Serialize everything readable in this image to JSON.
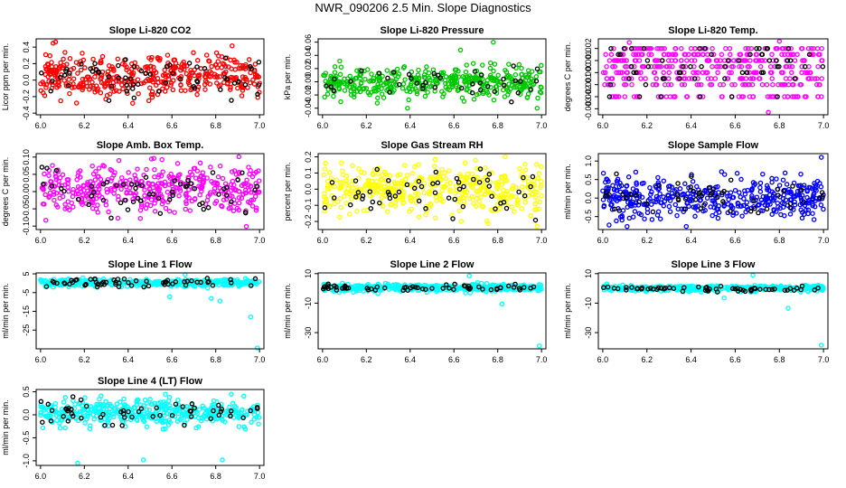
{
  "figure": {
    "title": "NWR_090206  2.5 Min. Slope Diagnostics"
  },
  "chart_data": [
    {
      "type": "scatter",
      "title": "Slope Li-820 CO2",
      "ylabel": "Licor ppm per min.",
      "xlim": [
        5.98,
        7.02
      ],
      "xticks": [
        6.0,
        6.2,
        6.4,
        6.6,
        6.8,
        7.0
      ],
      "x_tick_labels": [
        "6.0",
        "6.2",
        "6.4",
        "6.6",
        "6.8",
        "7.0"
      ],
      "ylim": [
        -0.42,
        0.5
      ],
      "yticks": [
        -0.4,
        -0.2,
        0.0,
        0.2,
        0.4
      ],
      "y_tick_labels": [
        "-0.4",
        "-0.2",
        "0.0",
        "0.2",
        "0.4"
      ],
      "primary_color": "#ff0000",
      "highlight_color": "#000000",
      "center": 0.05,
      "spread": 0.13,
      "discrete_levels": null,
      "n_points": 420,
      "n_highlight": 60,
      "outliers": [],
      "seed": 11
    },
    {
      "type": "scatter",
      "title": "Slope Li-820 Pressure",
      "ylabel": "kPa per min.",
      "xlim": [
        5.98,
        7.02
      ],
      "xticks": [
        6.0,
        6.2,
        6.4,
        6.6,
        6.8,
        7.0
      ],
      "x_tick_labels": [
        "6.0",
        "6.2",
        "6.4",
        "6.6",
        "6.8",
        "7.0"
      ],
      "ylim": [
        -0.05,
        0.065
      ],
      "yticks": [
        -0.04,
        -0.02,
        0.0,
        0.02,
        0.04,
        0.06
      ],
      "y_tick_labels": [
        "-0.04",
        "-0.02",
        "0.00",
        "0.02",
        "0.04",
        "0.06"
      ],
      "primary_color": "#00c800",
      "highlight_color": "#000000",
      "center": 0.0,
      "spread": 0.011,
      "discrete_levels": null,
      "n_points": 420,
      "n_highlight": 40,
      "outliers": [
        [
          6.63,
          0.048
        ],
        [
          6.78,
          0.06
        ],
        [
          6.98,
          -0.04
        ]
      ],
      "seed": 23
    },
    {
      "type": "scatter",
      "title": "Slope Li-820 Temp.",
      "ylabel": "degrees C per min.",
      "xlim": [
        5.98,
        7.02
      ],
      "xticks": [
        6.0,
        6.2,
        6.4,
        6.6,
        6.8,
        7.0
      ],
      "x_tick_labels": [
        "6.0",
        "6.2",
        "6.4",
        "6.6",
        "6.8",
        "7.0"
      ],
      "ylim": [
        -0.0035,
        0.0028
      ],
      "yticks": [
        -0.003,
        -0.002,
        -0.001,
        0.0,
        0.001,
        0.002
      ],
      "y_tick_labels": [
        "-0.003",
        "-0.002",
        "-0.001",
        "0.000",
        "0.001",
        "0.002"
      ],
      "primary_color": "#ff00ff",
      "highlight_color": "#000000",
      "center": 0.0,
      "spread": 0.0008,
      "discrete_levels": [
        -0.002,
        -0.001,
        -0.0005,
        0.0,
        0.0005,
        0.001,
        0.0015,
        0.002
      ],
      "n_points": 420,
      "n_highlight": 60,
      "outliers": [
        [
          6.12,
          0.0025
        ],
        [
          6.75,
          -0.0033
        ],
        [
          6.8,
          0.0026
        ]
      ],
      "seed": 37
    },
    {
      "type": "scatter",
      "title": "Slope Amb. Box Temp.",
      "ylabel": "degrees C per min.",
      "xlim": [
        5.98,
        7.02
      ],
      "xticks": [
        6.0,
        6.2,
        6.4,
        6.6,
        6.8,
        7.0
      ],
      "x_tick_labels": [
        "6.0",
        "6.2",
        "6.4",
        "6.6",
        "6.8",
        "7.0"
      ],
      "ylim": [
        -0.11,
        0.11
      ],
      "yticks": [
        -0.1,
        -0.05,
        0.0,
        0.05,
        0.1
      ],
      "y_tick_labels": [
        "-0.10",
        "-0.05",
        "0.00",
        "0.05",
        "0.10"
      ],
      "primary_color": "#ff00ff",
      "highlight_color": "#000000",
      "center": 0.005,
      "spread": 0.035,
      "discrete_levels": null,
      "n_points": 420,
      "n_highlight": 60,
      "outliers": [],
      "seed": 41
    },
    {
      "type": "scatter",
      "title": "Slope Gas Stream RH",
      "ylabel": "percent per min.",
      "xlim": [
        5.98,
        7.02
      ],
      "xticks": [
        6.0,
        6.2,
        6.4,
        6.6,
        6.8,
        7.0
      ],
      "x_tick_labels": [
        "6.0",
        "6.2",
        "6.4",
        "6.6",
        "6.8",
        "7.0"
      ],
      "ylim": [
        -0.25,
        0.22
      ],
      "yticks": [
        -0.2,
        -0.1,
        0.0,
        0.1,
        0.2
      ],
      "y_tick_labels": [
        "-0.2",
        "-0.1",
        "0.0",
        "0.1",
        "0.2"
      ],
      "primary_color": "#ffff00",
      "highlight_color": "#000000",
      "center": 0.0,
      "spread": 0.075,
      "discrete_levels": null,
      "n_points": 420,
      "n_highlight": 55,
      "outliers": [
        [
          6.98,
          -0.23
        ]
      ],
      "seed": 53
    },
    {
      "type": "scatter",
      "title": "Slope Sample Flow",
      "ylabel": "ml/min per min.",
      "xlim": [
        5.98,
        7.02
      ],
      "xticks": [
        6.0,
        6.2,
        6.4,
        6.6,
        6.8,
        7.0
      ],
      "x_tick_labels": [
        "6.0",
        "6.2",
        "6.4",
        "6.6",
        "6.8",
        "7.0"
      ],
      "ylim": [
        -0.85,
        1.2
      ],
      "yticks": [
        -0.5,
        0.0,
        0.5,
        1.0
      ],
      "y_tick_labels": [
        "-0.5",
        "0.0",
        "0.5",
        "1.0"
      ],
      "primary_color": "#0000ff",
      "highlight_color": "#000000",
      "center": 0.0,
      "spread": 0.25,
      "discrete_levels": null,
      "n_points": 420,
      "n_highlight": 55,
      "outliers": [
        [
          6.99,
          1.1
        ]
      ],
      "seed": 67
    },
    {
      "type": "scatter",
      "title": "Slope Line 1 Flow",
      "ylabel": "ml/min per min.",
      "xlim": [
        5.98,
        7.02
      ],
      "xticks": [
        6.0,
        6.2,
        6.4,
        6.6,
        6.8,
        7.0
      ],
      "x_tick_labels": [
        "6.0",
        "6.2",
        "6.4",
        "6.6",
        "6.8",
        "7.0"
      ],
      "ylim": [
        -35,
        5.5
      ],
      "yticks": [
        -25,
        -15,
        -5,
        5
      ],
      "y_tick_labels": [
        "-25",
        "-15",
        "-5",
        "5"
      ],
      "primary_color": "#00ffff",
      "highlight_color": "#000000",
      "center": 0.3,
      "spread": 0.9,
      "discrete_levels": null,
      "n_points": 420,
      "n_highlight": 60,
      "outliers": [
        [
          6.59,
          -7.2
        ],
        [
          6.78,
          -8.1
        ],
        [
          6.82,
          -9.5
        ],
        [
          6.96,
          -18
        ],
        [
          6.99,
          -34.5
        ],
        [
          6.66,
          4.6
        ]
      ],
      "seed": 71
    },
    {
      "type": "scatter",
      "title": "Slope Line 2 Flow",
      "ylabel": "ml/min per min.",
      "xlim": [
        5.98,
        7.02
      ],
      "xticks": [
        6.0,
        6.2,
        6.4,
        6.6,
        6.8,
        7.0
      ],
      "x_tick_labels": [
        "6.0",
        "6.2",
        "6.4",
        "6.6",
        "6.8",
        "7.0"
      ],
      "ylim": [
        -41,
        10.5
      ],
      "yticks": [
        -30,
        -10,
        10
      ],
      "y_tick_labels": [
        "-30",
        "-10",
        "10"
      ],
      "primary_color": "#00ffff",
      "highlight_color": "#000000",
      "center": 0.5,
      "spread": 1.2,
      "discrete_levels": null,
      "n_points": 420,
      "n_highlight": 60,
      "outliers": [
        [
          6.67,
          8.5
        ],
        [
          6.82,
          -10.5
        ],
        [
          6.99,
          -39
        ]
      ],
      "seed": 83
    },
    {
      "type": "scatter",
      "title": "Slope Line 3 Flow",
      "ylabel": "ml/min per min.",
      "xlim": [
        5.98,
        7.02
      ],
      "xticks": [
        6.0,
        6.2,
        6.4,
        6.6,
        6.8,
        7.0
      ],
      "x_tick_labels": [
        "6.0",
        "6.2",
        "6.4",
        "6.6",
        "6.8",
        "7.0"
      ],
      "ylim": [
        -41,
        10.5
      ],
      "yticks": [
        -30,
        -10,
        10
      ],
      "y_tick_labels": [
        "-30",
        "-10",
        "10"
      ],
      "primary_color": "#00ffff",
      "highlight_color": "#000000",
      "center": 0.0,
      "spread": 1.0,
      "discrete_levels": null,
      "n_points": 420,
      "n_highlight": 60,
      "outliers": [
        [
          6.68,
          9.0
        ],
        [
          6.55,
          -6.5
        ],
        [
          6.84,
          -13.5
        ],
        [
          6.99,
          -38.5
        ]
      ],
      "seed": 97
    },
    {
      "type": "scatter",
      "title": "Slope Line 4 (LT) Flow",
      "ylabel": "ml/min per min.",
      "xlim": [
        5.98,
        7.02
      ],
      "xticks": [
        6.0,
        6.2,
        6.4,
        6.6,
        6.8,
        7.0
      ],
      "x_tick_labels": [
        "6.0",
        "6.2",
        "6.4",
        "6.6",
        "6.8",
        "7.0"
      ],
      "ylim": [
        -1.1,
        0.55
      ],
      "yticks": [
        -1.0,
        -0.5,
        0.0,
        0.5
      ],
      "y_tick_labels": [
        "-1.0",
        "-0.5",
        "0.0",
        "0.5"
      ],
      "primary_color": "#00ffff",
      "highlight_color": "#000000",
      "center": 0.05,
      "spread": 0.14,
      "discrete_levels": null,
      "n_points": 420,
      "n_highlight": 55,
      "outliers": [
        [
          6.17,
          -1.05
        ],
        [
          6.47,
          -0.98
        ],
        [
          6.83,
          -0.98
        ]
      ],
      "seed": 101
    }
  ]
}
